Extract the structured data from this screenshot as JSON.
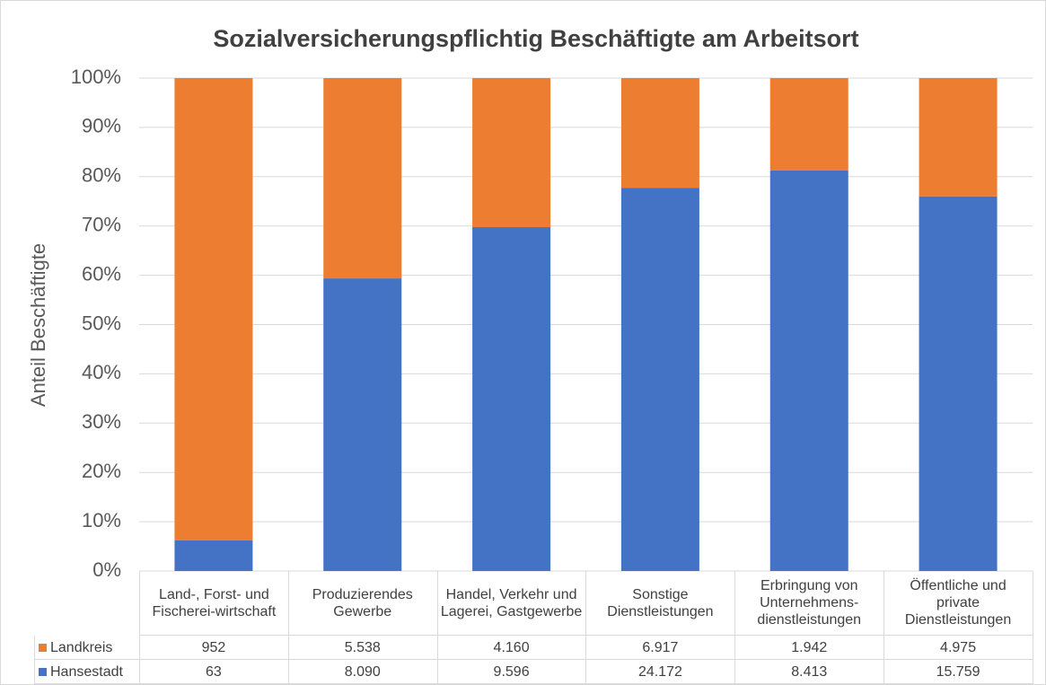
{
  "chart_data": {
    "type": "stacked_percent_bar",
    "title": "Sozialversicherungspflichtig Beschäftigte am Arbeitsort",
    "y_label": "Anteil Beschäftigte",
    "categories": [
      "Land-, Forst- und Fischerei-wirtschaft",
      "Produzierendes Gewerbe",
      "Handel, Verkehr und Lagerei, Gastgewerbe",
      "Sonstige Dienstleistungen",
      "Erbringung von Unternehmens-dienstleistungen",
      "Öffentliche und private Dienstleistungen"
    ],
    "series": [
      {
        "name": "Landkreis",
        "color": "#ed7d31",
        "values": [
          952,
          5538,
          4160,
          6917,
          1942,
          4975
        ],
        "value_labels": [
          "952",
          "5.538",
          "4.160",
          "6.917",
          "1.942",
          "4.975"
        ]
      },
      {
        "name": "Hansestadt",
        "color": "#4472c4",
        "values": [
          63,
          8090,
          9596,
          24172,
          8413,
          15759
        ],
        "value_labels": [
          "63",
          "8.090",
          "9.596",
          "24.172",
          "8.413",
          "15.759"
        ]
      }
    ],
    "ylim": [
      0,
      100
    ],
    "yticks": [
      {
        "value": 0,
        "label": "0%"
      },
      {
        "value": 10,
        "label": "10%"
      },
      {
        "value": 20,
        "label": "20%"
      },
      {
        "value": 30,
        "label": "30%"
      },
      {
        "value": 40,
        "label": "40%"
      },
      {
        "value": 50,
        "label": "50%"
      },
      {
        "value": 60,
        "label": "60%"
      },
      {
        "value": 70,
        "label": "70%"
      },
      {
        "value": 80,
        "label": "80%"
      },
      {
        "value": 90,
        "label": "90%"
      },
      {
        "value": 100,
        "label": "100%"
      }
    ],
    "grid": true
  }
}
